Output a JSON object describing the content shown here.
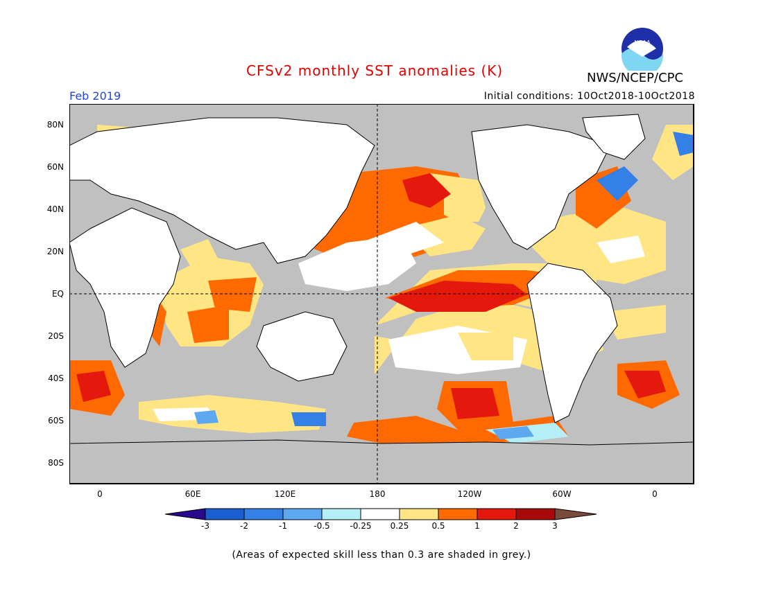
{
  "header": {
    "title": "CFSv2 monthly SST anomalies (K)",
    "agency": "NWS/NCEP/CPC",
    "month": "Feb 2019",
    "initial_conditions": "Initial conditions: 10Oct2018-10Oct2018",
    "logo_text": "NOAA"
  },
  "map": {
    "lat_labels": [
      "80N",
      "60N",
      "40N",
      "20N",
      "EQ",
      "20S",
      "40S",
      "60S",
      "80S"
    ],
    "lon_labels": [
      "0",
      "60E",
      "120E",
      "180",
      "120W",
      "60W",
      "0"
    ],
    "land_color": "#ffffff",
    "skill_mask_color": "#c0c0c0"
  },
  "colorbar": {
    "labels": [
      "-3",
      "-2",
      "-1",
      "-0.5",
      "-0.25",
      "0.25",
      "0.5",
      "1",
      "2",
      "3"
    ],
    "colors": [
      "#2a0a8c",
      "#1b5fce",
      "#3480e6",
      "#5ea8f0",
      "#b4eef6",
      "#ffffff",
      "#ffe584",
      "#ff6a00",
      "#e4180c",
      "#a80a0a",
      "#7a4a3a"
    ]
  },
  "footnote": "(Areas of expected skill less than 0.3 are shaded in grey.)"
}
